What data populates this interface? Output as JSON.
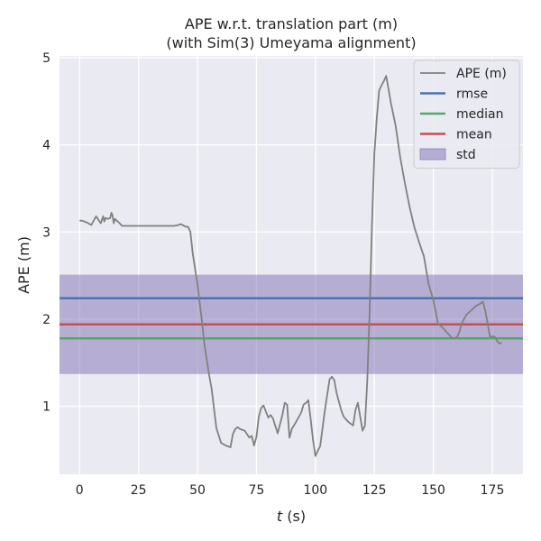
{
  "chart_data": {
    "type": "line",
    "title_line1": "APE w.r.t. translation part (m)",
    "title_line2": "(with Sim(3) Umeyama alignment)",
    "xlabel_italic": "t",
    "xlabel_unit": " (s)",
    "ylabel": "APE (m)",
    "xlim": [
      -8.5,
      188
    ],
    "ylim": [
      0.22,
      5.02
    ],
    "xticks": [
      0,
      25,
      50,
      75,
      100,
      125,
      150,
      175
    ],
    "yticks": [
      1,
      2,
      3,
      4,
      5
    ],
    "grid": true,
    "legend_placement": "top-right",
    "colors": {
      "background": "#eaeaf2",
      "grid": "#ffffff",
      "ape": "#808080",
      "rmse": "#4c72b0",
      "median": "#55a868",
      "mean": "#c44e52",
      "std": "#8172b2"
    },
    "series": [
      {
        "name": "APE (m)",
        "kind": "line",
        "x": [
          0,
          1,
          3,
          5,
          7,
          9,
          10,
          10.5,
          11,
          12,
          13,
          13.5,
          14,
          14.5,
          15,
          17,
          18,
          20,
          30,
          40,
          42,
          43,
          45,
          46,
          47,
          48,
          50,
          52,
          53,
          55,
          56,
          58,
          60,
          62,
          64,
          65,
          66,
          67,
          68,
          70,
          71,
          72,
          73,
          74,
          75,
          76,
          77,
          78,
          79,
          80,
          81,
          82,
          84,
          86,
          87,
          88,
          89,
          90,
          92,
          94,
          95,
          96,
          97,
          98,
          99,
          100,
          101,
          102,
          104,
          106,
          107,
          108,
          109,
          110,
          111,
          112,
          114,
          116,
          117,
          118,
          119,
          120,
          121,
          122,
          123,
          124,
          125,
          126,
          127,
          128,
          129,
          130,
          131,
          132,
          134,
          136,
          138,
          140,
          142,
          144,
          146,
          148,
          150,
          152,
          154,
          156,
          158,
          160,
          161,
          162,
          164,
          166,
          168,
          170,
          171,
          172,
          174,
          175,
          176,
          177,
          178,
          179
        ],
        "y": [
          3.13,
          3.13,
          3.11,
          3.08,
          3.18,
          3.1,
          3.18,
          3.12,
          3.16,
          3.15,
          3.16,
          3.22,
          3.19,
          3.1,
          3.15,
          3.1,
          3.07,
          3.07,
          3.07,
          3.07,
          3.08,
          3.09,
          3.06,
          3.06,
          3.0,
          2.75,
          2.4,
          1.95,
          1.7,
          1.35,
          1.2,
          0.75,
          0.58,
          0.55,
          0.53,
          0.68,
          0.74,
          0.76,
          0.74,
          0.72,
          0.68,
          0.64,
          0.66,
          0.55,
          0.65,
          0.88,
          0.98,
          1.01,
          0.94,
          0.87,
          0.9,
          0.86,
          0.69,
          0.9,
          1.04,
          1.02,
          0.64,
          0.74,
          0.83,
          0.93,
          1.02,
          1.04,
          1.07,
          0.85,
          0.61,
          0.43,
          0.49,
          0.54,
          0.95,
          1.31,
          1.34,
          1.3,
          1.15,
          1.05,
          0.95,
          0.88,
          0.82,
          0.78,
          0.96,
          1.04,
          0.88,
          0.72,
          0.78,
          1.3,
          2.1,
          3.1,
          3.9,
          4.3,
          4.62,
          4.68,
          4.73,
          4.79,
          4.64,
          4.48,
          4.22,
          3.85,
          3.55,
          3.28,
          3.05,
          2.88,
          2.72,
          2.4,
          2.22,
          1.95,
          1.9,
          1.84,
          1.78,
          1.79,
          1.85,
          1.95,
          2.05,
          2.1,
          2.15,
          2.18,
          2.2,
          2.1,
          1.8,
          1.8,
          1.8,
          1.75,
          1.72,
          1.73
        ]
      },
      {
        "name": "rmse",
        "kind": "hline",
        "value": 2.24
      },
      {
        "name": "median",
        "kind": "hline",
        "value": 1.78
      },
      {
        "name": "mean",
        "kind": "hline",
        "value": 1.94
      },
      {
        "name": "std",
        "kind": "band",
        "lower": 1.37,
        "upper": 2.51
      }
    ]
  }
}
